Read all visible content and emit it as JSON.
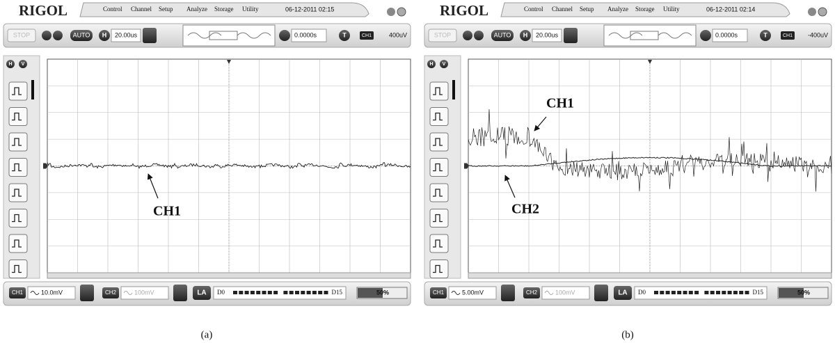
{
  "panels": [
    {
      "brand": "RIGOL",
      "menu": [
        "Control",
        "Channel",
        "Setup",
        "Analyze",
        "Storage",
        "Utility"
      ],
      "datetime": "06-12-2011 02:15",
      "toolbar": {
        "run_state": "STOP",
        "auto": "AUTO",
        "horizontal_icon": "H",
        "timebase": "20.00us",
        "delay": "0.0000s",
        "trigger_icon": "T",
        "trigger_source": "CH1",
        "trigger_level": "400uV"
      },
      "side": {
        "h": "H",
        "v": "V"
      },
      "annotations": [
        "CH1"
      ],
      "bottom": {
        "ch1": "CH1",
        "ch1_scale": "10.0mV",
        "ch2": "CH2",
        "ch2_scale": "100mV",
        "la": "LA",
        "d_start": "D0",
        "d_end": "D15",
        "zoom": "50%"
      },
      "caption": "(a)"
    },
    {
      "brand": "RIGOL",
      "menu": [
        "Control",
        "Channel",
        "Setup",
        "Analyze",
        "Storage",
        "Utility"
      ],
      "datetime": "06-12-2011 02:14",
      "toolbar": {
        "run_state": "STOP",
        "auto": "AUTO",
        "horizontal_icon": "H",
        "timebase": "20.00us",
        "delay": "0.0000s",
        "trigger_icon": "T",
        "trigger_source": "CH1",
        "trigger_level": "-400uV"
      },
      "side": {
        "h": "H",
        "v": "V"
      },
      "annotations": [
        "CH1",
        "CH2"
      ],
      "bottom": {
        "ch1": "CH1",
        "ch1_scale": "5.00mV",
        "ch2": "CH2",
        "ch2_scale": "100mV",
        "la": "LA",
        "d_start": "D0",
        "d_end": "D15",
        "zoom": "50%"
      },
      "caption": "(b)"
    }
  ]
}
